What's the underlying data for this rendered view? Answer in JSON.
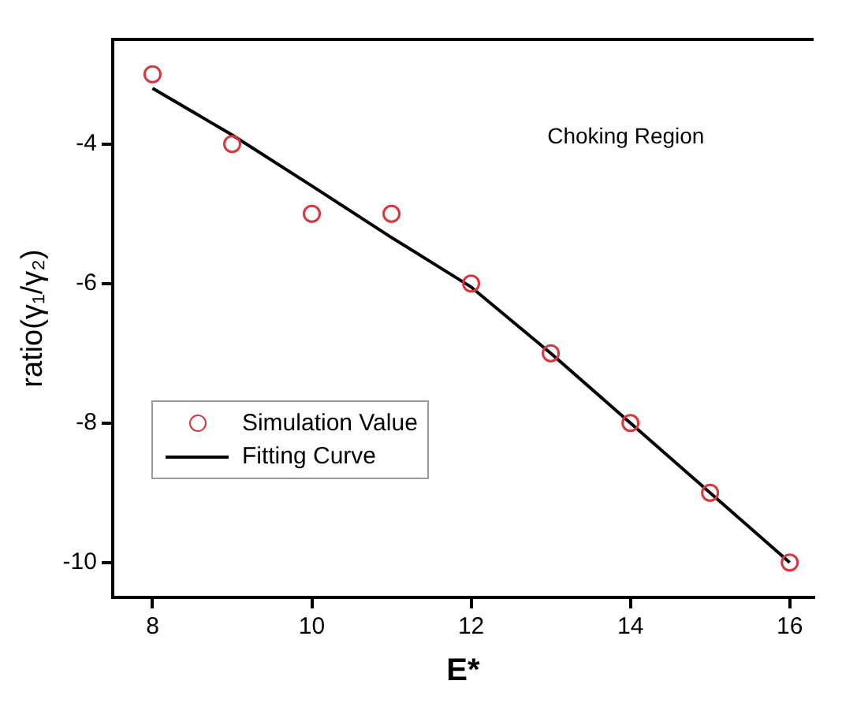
{
  "chart_data": {
    "type": "scatter",
    "xlabel": "E*",
    "ylabel": "ratio(γ₁/γ₂)",
    "xlim": [
      7.5,
      16.3
    ],
    "ylim": [
      -10.5,
      -2.5
    ],
    "xticks": [
      8,
      10,
      12,
      14,
      16
    ],
    "yticks": [
      -4,
      -6,
      -8,
      -10
    ],
    "grid": false,
    "legend": "bottom left",
    "marker": "circle",
    "annotations": [
      "Choking Region"
    ],
    "series": [
      {
        "name": "Simulation Value",
        "color": "#d9363e",
        "x": [
          8,
          9,
          10,
          11,
          12,
          13,
          14,
          15,
          16
        ],
        "values": [
          -3,
          -4,
          -5,
          -5,
          -6,
          -7,
          -8,
          -9,
          -10
        ]
      },
      {
        "name": "Fitting Curve",
        "type": "line",
        "color": "#000000",
        "marker": "none",
        "x": [
          8,
          9,
          10,
          11,
          12,
          13,
          14,
          15,
          16
        ],
        "values": [
          -3.2,
          -3.87,
          -4.6,
          -5.34,
          -6.05,
          -7,
          -8,
          -9,
          -10
        ]
      }
    ]
  }
}
